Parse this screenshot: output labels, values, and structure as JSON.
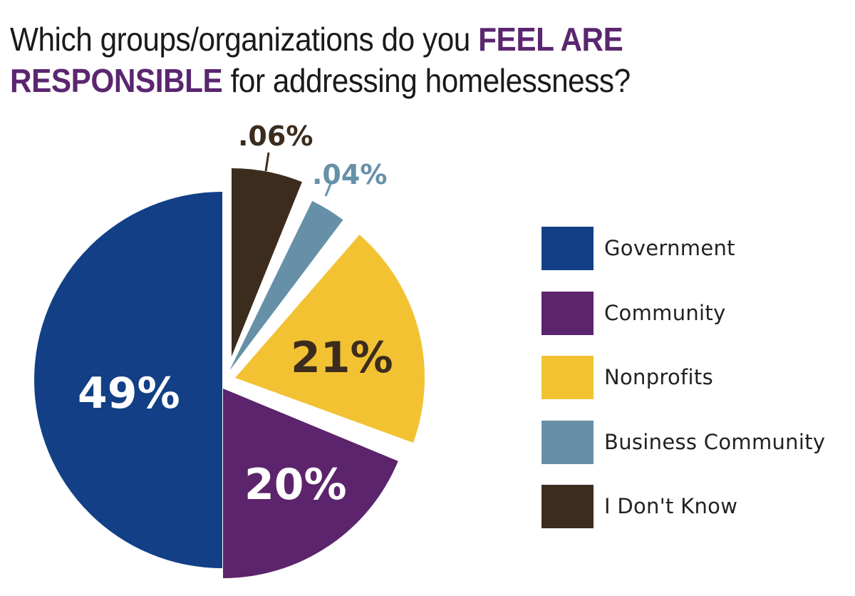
{
  "title": {
    "part1": "Which groups/organizations do you ",
    "highlight1": "FEEL ARE",
    "highlight2": "RESPONSIBLE",
    "part2": " for addressing homelessness?"
  },
  "chart_data": {
    "type": "pie",
    "title": "Which groups/organizations do you FEEL ARE RESPONSIBLE for addressing homelessness?",
    "categories": [
      "Government",
      "Community",
      "Nonprofits",
      "Business Community",
      "I Don't Know"
    ],
    "values": [
      49,
      20,
      21,
      0.04,
      0.06
    ],
    "labels": [
      "49%",
      "20%",
      "21%",
      ".04%",
      ".06%"
    ],
    "colors": [
      "#123f86",
      "#5c246c",
      "#f2c232",
      "#6690a8",
      "#3b2c1e"
    ],
    "legend_position": "right",
    "exploded": true
  },
  "legend": {
    "items": [
      {
        "label": "Government",
        "color": "#123f86"
      },
      {
        "label": "Community",
        "color": "#5c246c"
      },
      {
        "label": "Nonprofits",
        "color": "#f2c232"
      },
      {
        "label": "Business Community",
        "color": "#6690a8"
      },
      {
        "label": "I Don't Know",
        "color": "#3b2c1e"
      }
    ]
  },
  "slice_labels": {
    "government": "49%",
    "community": "20%",
    "nonprofits": "21%",
    "business": ".04%",
    "dontknow": ".06%"
  }
}
